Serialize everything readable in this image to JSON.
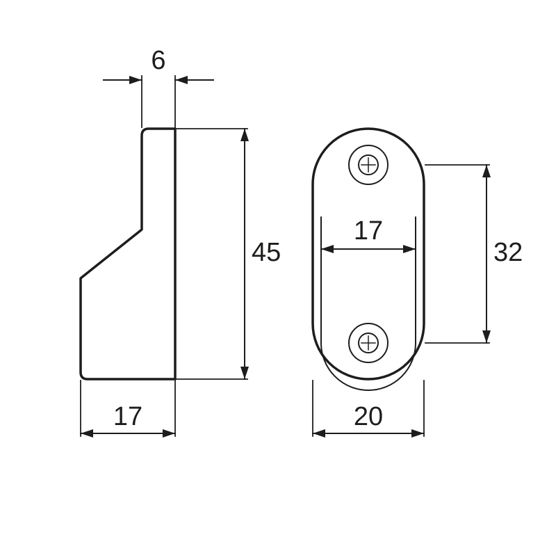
{
  "figure": {
    "type": "engineering-drawing",
    "background_color": "#ffffff",
    "stroke_color": "#1d1d1b",
    "thick_stroke_width": 3.5,
    "thin_stroke_width": 2,
    "dim_stroke_width": 2,
    "font_size": 38,
    "font_weight": "500",
    "text_color": "#1d1d1b",
    "arrow_len": 18,
    "arrow_half": 6
  },
  "dims": {
    "top_width": "6",
    "side_height": "45",
    "side_bottom_width": "17",
    "front_inner_width": "17",
    "front_height_holes": "32",
    "front_bottom_width": "20"
  }
}
